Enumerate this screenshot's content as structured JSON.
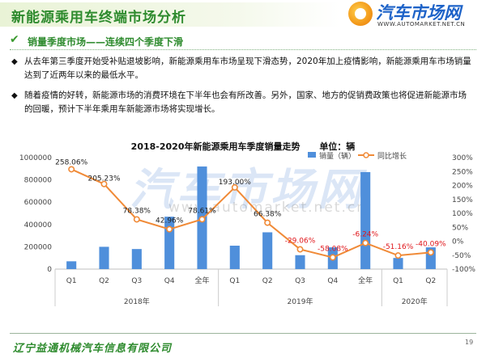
{
  "header": {
    "title": "新能源乘用车终端市场分析",
    "logo_text": "汽车市场网",
    "logo_url": "WWW.AUTOMARKET.NET.CN"
  },
  "subtitle": "销量季度市场——连续四个季度下滑",
  "bullets": [
    "从去年第三季度开始受补贴退坡影响，新能源乘用车市场呈现下滑态势，2020年加上疫情影响，新能源乘用车市场销量达到了近两年以来的最低水平。",
    "随着疫情的好转，新能源市场的消费环境在下半年也会有所改善。另外，国家、地方的促销费政策也将促进新能源市场的回暖，预计下半年乘用车新能源市场将实现增长。"
  ],
  "watermark": {
    "text": "汽车市场网",
    "url": "www.automarket.net.cn"
  },
  "footer": {
    "company": "辽宁益通机械汽车信息有限公司",
    "page": "19"
  },
  "chart_data": {
    "type": "bar+line",
    "title": "2018-2020年新能源乘用车季度销量走势",
    "unit_label": "单位：辆",
    "legend": {
      "bar": "销量（辆）",
      "line": "同比增长",
      "position": "top"
    },
    "categories": [
      "Q1",
      "Q2",
      "Q3",
      "Q4",
      "全年",
      "Q1",
      "Q2",
      "Q3",
      "Q4",
      "全年",
      "Q1",
      "Q2"
    ],
    "groups": [
      {
        "label": "2018年",
        "count": 5
      },
      {
        "label": "2019年",
        "count": 5
      },
      {
        "label": "2020年",
        "count": 2
      }
    ],
    "series": [
      {
        "name": "销量（辆）",
        "kind": "bar",
        "axis": "left",
        "color": "#4f8fdb",
        "values": [
          70000,
          200000,
          180000,
          470000,
          920000,
          210000,
          330000,
          125000,
          195000,
          870000,
          100000,
          195000
        ]
      },
      {
        "name": "同比增长",
        "kind": "line",
        "axis": "right",
        "color": "#f08a37",
        "values": [
          258.06,
          205.23,
          78.38,
          42.96,
          78.61,
          193.0,
          66.38,
          -29.06,
          -58.08,
          -6.24,
          -51.16,
          -40.09
        ],
        "labels": [
          "258.06%",
          "205.23%",
          "78.38%",
          "42.96%",
          "78.61%",
          "193.00%",
          "66.38%",
          "-29.06%",
          "-58.08%",
          "-6.24%",
          "-51.16%",
          "-40.09%"
        ],
        "label_colors": [
          "#222222",
          "#222222",
          "#222222",
          "#222222",
          "#222222",
          "#222222",
          "#222222",
          "#e0161b",
          "#e0161b",
          "#e0161b",
          "#e0161b",
          "#e0161b"
        ]
      }
    ],
    "y_left": {
      "min": 0,
      "max": 1000000,
      "ticks": [
        "0",
        "200000",
        "400000",
        "600000",
        "800000",
        "1000000"
      ]
    },
    "y_right": {
      "min": -100,
      "max": 300,
      "ticks": [
        "-100%",
        "-50%",
        "0%",
        "50%",
        "100%",
        "150%",
        "200%",
        "250%",
        "300%"
      ]
    },
    "grid": false
  }
}
